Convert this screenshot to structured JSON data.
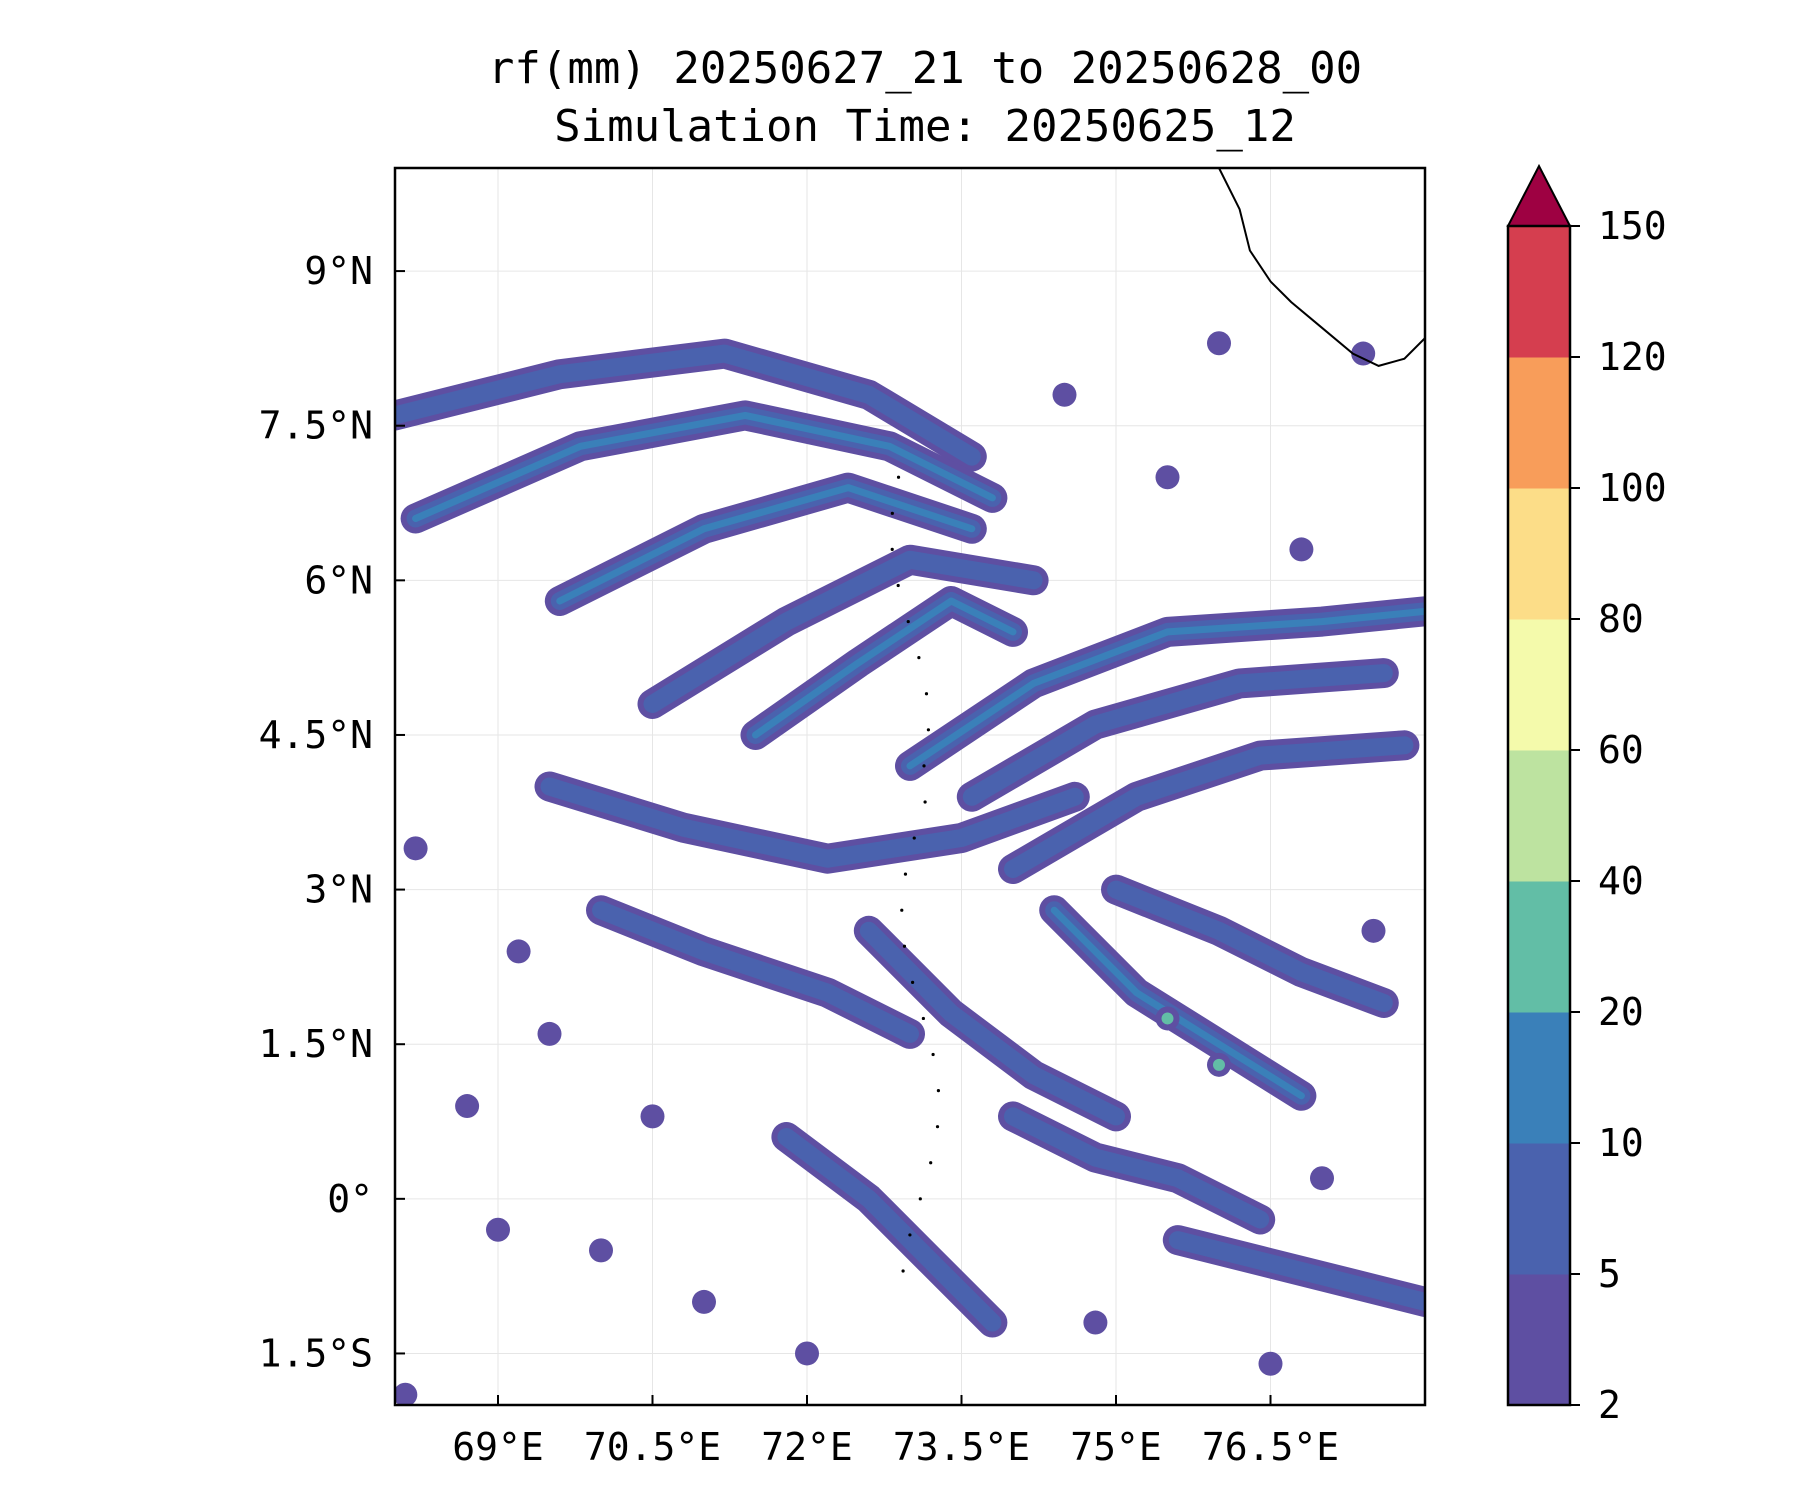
{
  "title_line1": "rf(mm) 20250627_21 to 20250628_00",
  "title_line2": "Simulation Time: 20250625_12",
  "map": {
    "lon_range": [
      68.0,
      78.0
    ],
    "lat_range": [
      -2.0,
      10.0
    ],
    "gridlines": true,
    "x_ticks": [
      {
        "value": 69.0,
        "label": "69°E"
      },
      {
        "value": 70.5,
        "label": "70.5°E"
      },
      {
        "value": 72.0,
        "label": "72°E"
      },
      {
        "value": 73.5,
        "label": "73.5°E"
      },
      {
        "value": 75.0,
        "label": "75°E"
      },
      {
        "value": 76.5,
        "label": "76.5°E"
      }
    ],
    "y_ticks": [
      {
        "value": 9.0,
        "label": "9°N"
      },
      {
        "value": 7.5,
        "label": "7.5°N"
      },
      {
        "value": 6.0,
        "label": "6°N"
      },
      {
        "value": 4.5,
        "label": "4.5°N"
      },
      {
        "value": 3.0,
        "label": "3°N"
      },
      {
        "value": 1.5,
        "label": "1.5°N"
      },
      {
        "value": 0.0,
        "label": "0°"
      },
      {
        "value": -1.5,
        "label": "1.5°S"
      }
    ],
    "rain_bands": [
      {
        "lon": [
          68.0,
          69.6,
          71.2,
          72.6,
          73.6
        ],
        "lat": [
          7.6,
          8.0,
          8.2,
          7.8,
          7.2
        ],
        "level": 1
      },
      {
        "lon": [
          68.2,
          69.8,
          71.4,
          72.8,
          73.8
        ],
        "lat": [
          6.6,
          7.3,
          7.6,
          7.3,
          6.8
        ],
        "level": 2
      },
      {
        "lon": [
          69.6,
          71.0,
          72.4,
          73.6
        ],
        "lat": [
          5.8,
          6.5,
          6.9,
          6.5
        ],
        "level": 2
      },
      {
        "lon": [
          70.5,
          71.8,
          73.0,
          74.2
        ],
        "lat": [
          4.8,
          5.6,
          6.2,
          6.0
        ],
        "level": 1
      },
      {
        "lon": [
          71.5,
          72.5,
          73.4,
          74.0
        ],
        "lat": [
          4.5,
          5.2,
          5.8,
          5.5
        ],
        "level": 2
      },
      {
        "lon": [
          73.0,
          74.2,
          75.5,
          77.0,
          78.0
        ],
        "lat": [
          4.2,
          5.0,
          5.5,
          5.6,
          5.7
        ],
        "level": 2
      },
      {
        "lon": [
          73.6,
          74.8,
          76.2,
          77.6
        ],
        "lat": [
          3.9,
          4.6,
          5.0,
          5.1
        ],
        "level": 1
      },
      {
        "lon": [
          74.0,
          75.2,
          76.4,
          77.8
        ],
        "lat": [
          3.2,
          3.9,
          4.3,
          4.4
        ],
        "level": 1
      },
      {
        "lon": [
          69.5,
          70.8,
          72.2,
          73.5,
          74.6
        ],
        "lat": [
          4.0,
          3.6,
          3.3,
          3.5,
          3.9
        ],
        "level": 1
      },
      {
        "lon": [
          70.0,
          71.0,
          72.2,
          73.0
        ],
        "lat": [
          2.8,
          2.4,
          2.0,
          1.6
        ],
        "level": 1
      },
      {
        "lon": [
          72.6,
          73.4,
          74.2,
          75.0
        ],
        "lat": [
          2.6,
          1.8,
          1.2,
          0.8
        ],
        "level": 1
      },
      {
        "lon": [
          74.4,
          75.2,
          76.0,
          76.8
        ],
        "lat": [
          2.8,
          2.0,
          1.5,
          1.0
        ],
        "level": 2
      },
      {
        "lon": [
          75.0,
          76.0,
          76.8,
          77.6
        ],
        "lat": [
          3.0,
          2.6,
          2.2,
          1.9
        ],
        "level": 1
      },
      {
        "lon": [
          74.0,
          74.8,
          75.6,
          76.4
        ],
        "lat": [
          0.8,
          0.4,
          0.2,
          -0.2
        ],
        "level": 1
      },
      {
        "lon": [
          71.8,
          72.6,
          73.2,
          73.8
        ],
        "lat": [
          0.6,
          0.0,
          -0.6,
          -1.2
        ],
        "level": 1
      },
      {
        "lon": [
          75.6,
          76.4,
          77.2,
          78.0
        ],
        "lat": [
          -0.4,
          -0.6,
          -0.8,
          -1.0
        ],
        "level": 1
      }
    ],
    "rain_spots": [
      {
        "lon": 75.5,
        "lat": 1.75,
        "level": 3
      },
      {
        "lon": 76.0,
        "lat": 1.3,
        "level": 3
      },
      {
        "lon": 69.0,
        "lat": -0.3,
        "level": 1
      },
      {
        "lon": 70.0,
        "lat": -0.5,
        "level": 1
      },
      {
        "lon": 70.5,
        "lat": 0.8,
        "level": 1
      },
      {
        "lon": 69.5,
        "lat": 1.6,
        "level": 1
      },
      {
        "lon": 71.0,
        "lat": -1.0,
        "level": 1
      },
      {
        "lon": 72.0,
        "lat": -1.5,
        "level": 1
      },
      {
        "lon": 74.8,
        "lat": -1.2,
        "level": 1
      },
      {
        "lon": 76.5,
        "lat": -1.6,
        "level": 1
      },
      {
        "lon": 77.0,
        "lat": 0.2,
        "level": 1
      },
      {
        "lon": 77.5,
        "lat": 2.6,
        "level": 1
      },
      {
        "lon": 69.2,
        "lat": 2.4,
        "level": 1
      },
      {
        "lon": 68.7,
        "lat": 0.9,
        "level": 1
      },
      {
        "lon": 76.8,
        "lat": 6.3,
        "level": 1
      },
      {
        "lon": 75.5,
        "lat": 7.0,
        "level": 1
      },
      {
        "lon": 74.5,
        "lat": 7.8,
        "level": 1
      },
      {
        "lon": 76.0,
        "lat": 8.3,
        "level": 1
      },
      {
        "lon": 77.4,
        "lat": 8.2,
        "level": 1
      },
      {
        "lon": 68.2,
        "lat": 3.4,
        "level": 1
      },
      {
        "lon": 68.1,
        "lat": -1.9,
        "level": 1
      }
    ],
    "coastline": [
      [
        76.0,
        10.0
      ],
      [
        76.2,
        9.6
      ],
      [
        76.3,
        9.2
      ],
      [
        76.5,
        8.9
      ],
      [
        76.7,
        8.7
      ],
      [
        77.0,
        8.45
      ],
      [
        77.3,
        8.2
      ],
      [
        77.55,
        8.08
      ],
      [
        77.8,
        8.15
      ],
      [
        78.0,
        8.35
      ]
    ],
    "colors": {
      "coastline": "#000000",
      "islands": "#000000",
      "grid": "#e6e6e6"
    }
  },
  "colorbar": {
    "levels": [
      {
        "from": 2,
        "to": 5,
        "color": "#5e4fa2"
      },
      {
        "from": 5,
        "to": 10,
        "color": "#4a62ae"
      },
      {
        "from": 10,
        "to": 20,
        "color": "#3a80b9"
      },
      {
        "from": 20,
        "to": 40,
        "color": "#62bea6"
      },
      {
        "from": 40,
        "to": 60,
        "color": "#bde3a0"
      },
      {
        "from": 60,
        "to": 80,
        "color": "#f4faab"
      },
      {
        "from": 80,
        "to": 100,
        "color": "#fcdd88"
      },
      {
        "from": 100,
        "to": 120,
        "color": "#f89d5a"
      },
      {
        "from": 120,
        "to": 150,
        "color": "#d53e4f"
      }
    ],
    "extend_color": "#9e0142",
    "tick_labels": [
      "2",
      "5",
      "10",
      "20",
      "40",
      "60",
      "80",
      "100",
      "120",
      "150"
    ]
  }
}
